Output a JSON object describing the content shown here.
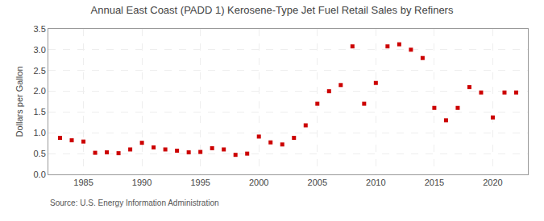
{
  "chart_data": {
    "type": "scatter",
    "title": "Annual East Coast (PADD 1) Kerosene-Type Jet Fuel Retail Sales by Refiners",
    "ylabel": "Dollars per Gallon",
    "annotations": [
      "Source: U.S. Energy Information Administration"
    ],
    "x": [
      1983,
      1984,
      1985,
      1986,
      1987,
      1988,
      1989,
      1990,
      1991,
      1992,
      1993,
      1994,
      1995,
      1996,
      1997,
      1998,
      1999,
      2000,
      2001,
      2002,
      2003,
      2004,
      2005,
      2006,
      2007,
      2008,
      2009,
      2010,
      2011,
      2012,
      2013,
      2014,
      2015,
      2016,
      2017,
      2018,
      2019,
      2020,
      2021,
      2022
    ],
    "values": [
      0.88,
      0.82,
      0.79,
      0.52,
      0.53,
      0.51,
      0.6,
      0.76,
      0.65,
      0.6,
      0.57,
      0.53,
      0.54,
      0.63,
      0.6,
      0.47,
      0.5,
      0.91,
      0.77,
      0.72,
      0.88,
      1.18,
      1.7,
      2.0,
      2.15,
      3.08,
      1.7,
      2.2,
      3.08,
      3.13,
      3.0,
      2.8,
      1.6,
      1.3,
      1.6,
      2.1,
      1.97,
      1.37,
      1.97,
      1.97
    ],
    "color": "#cc0000",
    "marker": "square",
    "xlim": [
      1982,
      2023
    ],
    "ylim": [
      0.0,
      3.5
    ],
    "xticks": [
      1985,
      1990,
      1995,
      2000,
      2005,
      2010,
      2015,
      2020
    ],
    "yticks": [
      {
        "value": 0.0,
        "label": "0.0"
      },
      0.5,
      {
        "value": 1.0,
        "label": "1.0"
      },
      1.5,
      {
        "value": 2.0,
        "label": "2.0"
      },
      2.5,
      {
        "value": 3.0,
        "label": "3.0"
      },
      3.5
    ],
    "grid": true
  }
}
